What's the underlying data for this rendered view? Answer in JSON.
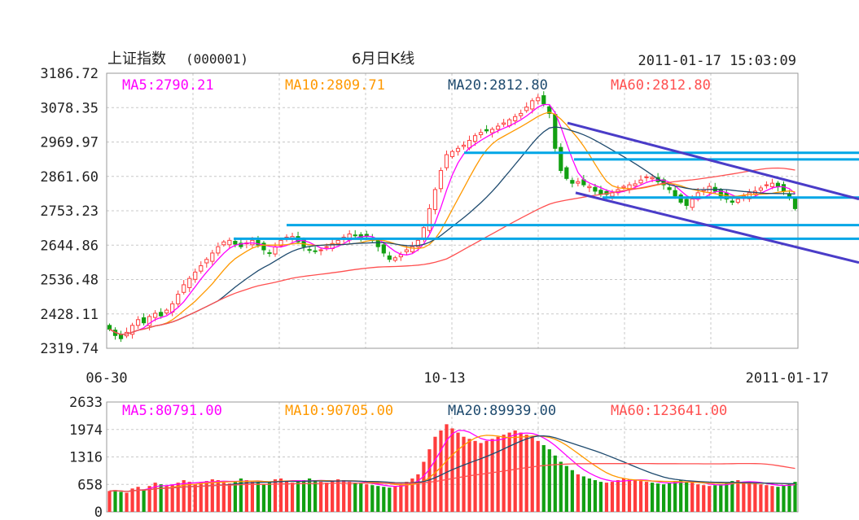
{
  "header": {
    "index_name": "上证指数",
    "index_code": "(000001)",
    "chart_title": "6月日K线",
    "datetime": "2011-01-17 15:03:09"
  },
  "colors": {
    "up": "#ff3c3c",
    "down": "#12a012",
    "ma5": "#ff00ff",
    "ma10": "#ff9900",
    "ma20": "#1e4a6e",
    "ma60": "#ff5050",
    "trend_h": "#00a6e6",
    "trend_d": "#4a3cc8",
    "grid": "#c8c8c8"
  },
  "price_panel": {
    "legend": [
      {
        "label": "MA5:2790.21",
        "color_key": "ma5"
      },
      {
        "label": "MA10:2809.71",
        "color_key": "ma10"
      },
      {
        "label": "MA20:2812.80",
        "color_key": "ma20"
      },
      {
        "label": "MA60:2812.80",
        "color_key": "ma60"
      }
    ],
    "y_ticks": [
      "3186.72",
      "3078.35",
      "2969.97",
      "2861.60",
      "2753.23",
      "2644.86",
      "2536.48",
      "2428.11",
      "2319.74"
    ],
    "x_ticks": [
      "06-30",
      "10-13",
      "2011-01-17"
    ]
  },
  "volume_panel": {
    "legend": [
      {
        "label": "MA5:80791.00",
        "color_key": "ma5"
      },
      {
        "label": "MA10:90705.00",
        "color_key": "ma10"
      },
      {
        "label": "MA20:89939.00",
        "color_key": "ma20"
      },
      {
        "label": "MA60:123641.00",
        "color_key": "ma60"
      }
    ],
    "y_ticks": [
      "2633",
      "1974",
      "1316",
      "658",
      "0"
    ]
  },
  "chart_data": [
    {
      "type": "candlestick",
      "title": "6月日K线",
      "ylim": [
        2319.74,
        3186.72
      ],
      "x_range": [
        "06-30",
        "2011-01-17"
      ],
      "grid": true,
      "close": [
        2380,
        2360,
        2350,
        2370,
        2392,
        2410,
        2400,
        2420,
        2430,
        2422,
        2440,
        2460,
        2490,
        2520,
        2540,
        2560,
        2580,
        2600,
        2620,
        2640,
        2655,
        2660,
        2648,
        2640,
        2652,
        2660,
        2645,
        2630,
        2620,
        2640,
        2660,
        2670,
        2672,
        2655,
        2640,
        2630,
        2625,
        2630,
        2640,
        2650,
        2660,
        2670,
        2680,
        2675,
        2670,
        2672,
        2660,
        2640,
        2620,
        2600,
        2605,
        2615,
        2630,
        2640,
        2660,
        2700,
        2760,
        2820,
        2880,
        2930,
        2940,
        2950,
        2960,
        2975,
        2990,
        3000,
        3005,
        3010,
        3020,
        3030,
        3040,
        3050,
        3060,
        3080,
        3100,
        3110,
        3090,
        3060,
        2950,
        2880,
        2855,
        2840,
        2845,
        2835,
        2830,
        2815,
        2805,
        2805,
        2810,
        2820,
        2830,
        2835,
        2838,
        2850,
        2860,
        2858,
        2845,
        2835,
        2820,
        2800,
        2780,
        2770,
        2790,
        2810,
        2820,
        2830,
        2815,
        2800,
        2790,
        2780,
        2790,
        2800,
        2810,
        2815,
        2825,
        2835,
        2840,
        2830,
        2815,
        2795,
        2760
      ],
      "ma_series": [
        {
          "name": "MA5",
          "value": 2790.21
        },
        {
          "name": "MA10",
          "value": 2809.71
        },
        {
          "name": "MA20",
          "value": 2812.8
        },
        {
          "name": "MA60",
          "value": 2812.8
        }
      ],
      "trendlines": {
        "horizontal": [
          2936,
          2915,
          2795,
          2708,
          2665
        ],
        "descending_upper": [
          3030,
          2790
        ],
        "descending_lower": [
          2810,
          2590
        ]
      }
    },
    {
      "type": "bar",
      "title": "",
      "ylim": [
        0,
        2633
      ],
      "values": [
        500,
        520,
        480,
        460,
        560,
        600,
        540,
        620,
        700,
        660,
        620,
        640,
        700,
        760,
        720,
        660,
        700,
        740,
        780,
        760,
        700,
        680,
        740,
        800,
        760,
        720,
        700,
        660,
        720,
        780,
        800,
        740,
        700,
        720,
        760,
        800,
        760,
        720,
        700,
        740,
        780,
        760,
        720,
        700,
        680,
        660,
        640,
        620,
        600,
        580,
        620,
        660,
        720,
        800,
        900,
        1200,
        1500,
        1800,
        1950,
        2100,
        2000,
        1900,
        1800,
        1750,
        1700,
        1650,
        1700,
        1750,
        1800,
        1850,
        1900,
        1950,
        1900,
        1850,
        1800,
        1700,
        1600,
        1500,
        1350,
        1200,
        1100,
        1000,
        900,
        850,
        800,
        760,
        720,
        700,
        720,
        760,
        800,
        780,
        760,
        740,
        720,
        700,
        680,
        660,
        700,
        740,
        760,
        720,
        700,
        660,
        640,
        620,
        640,
        660,
        700,
        740,
        760,
        720,
        700,
        680,
        660,
        640,
        620,
        600,
        640,
        680,
        720
      ]
    }
  ]
}
